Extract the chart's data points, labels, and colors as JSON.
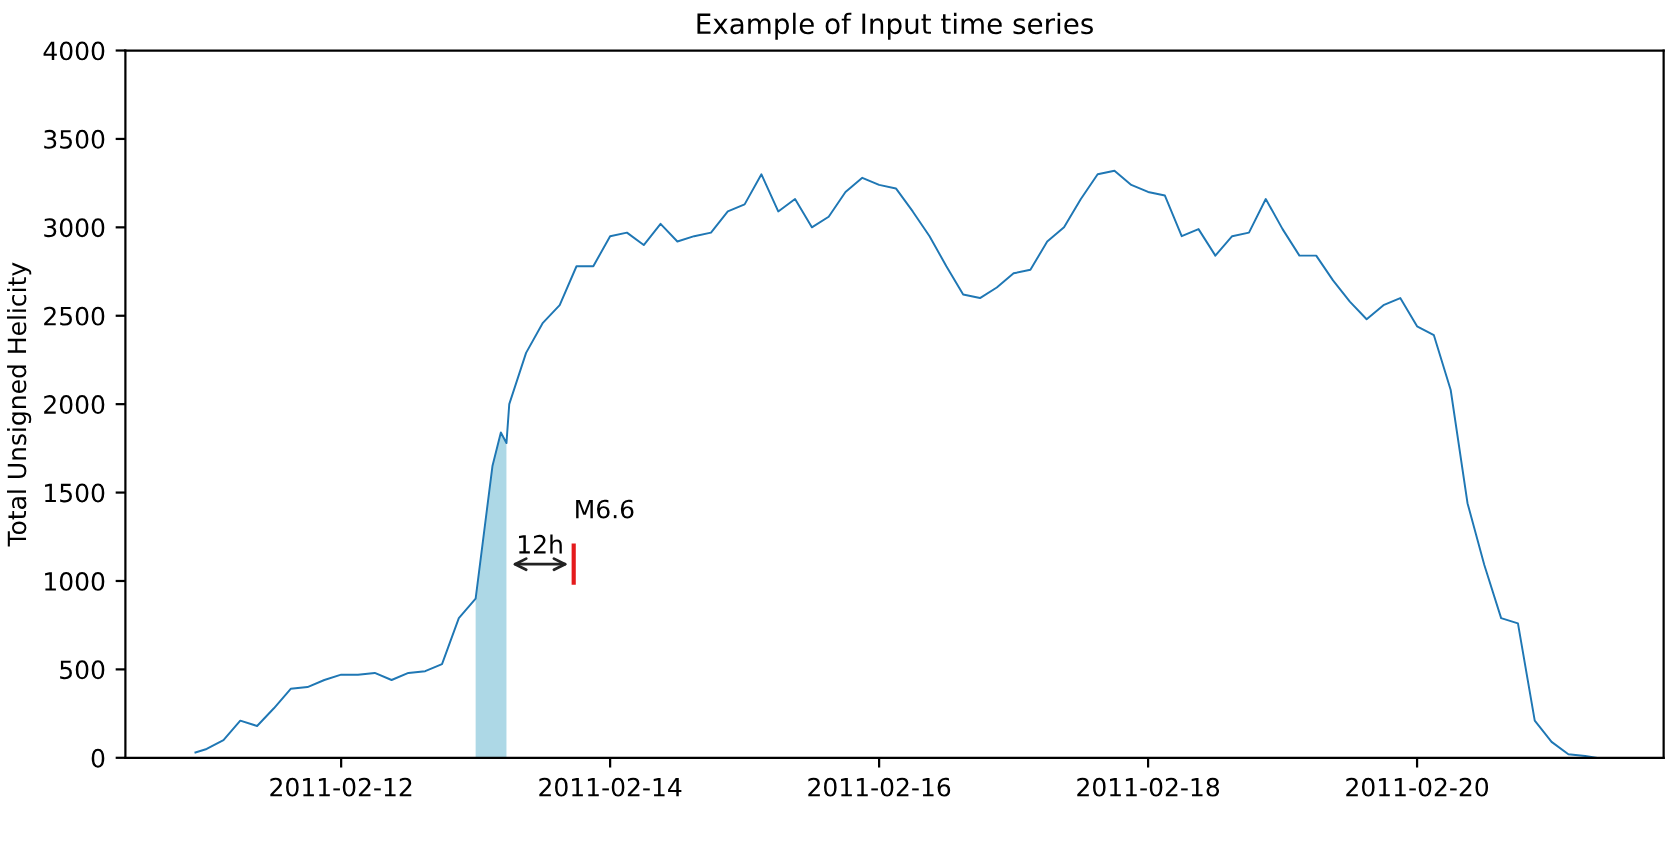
{
  "chart_data": {
    "type": "line",
    "title": "Example of Input time series",
    "ylabel": "Total Unsigned Helicity",
    "xlim": [
      "2011-02-10T09:30",
      "2011-02-21T20:00"
    ],
    "xticks": [
      "2011-02-12",
      "2011-02-14",
      "2011-02-16",
      "2011-02-18",
      "2011-02-20"
    ],
    "ylim": [
      0,
      4000
    ],
    "yticks": [
      0,
      500,
      1000,
      1500,
      2000,
      2500,
      3000,
      3500,
      4000
    ],
    "grid": false,
    "series": [
      {
        "color": "#1f77b4",
        "x": [
          "2011-02-10T22:00",
          "2011-02-11T00:00",
          "2011-02-11T03:00",
          "2011-02-11T06:00",
          "2011-02-11T09:00",
          "2011-02-11T12:00",
          "2011-02-11T15:00",
          "2011-02-11T18:00",
          "2011-02-11T21:00",
          "2011-02-12T00:00",
          "2011-02-12T03:00",
          "2011-02-12T06:00",
          "2011-02-12T09:00",
          "2011-02-12T12:00",
          "2011-02-12T15:00",
          "2011-02-12T18:00",
          "2011-02-12T21:00",
          "2011-02-13T00:00",
          "2011-02-13T03:00",
          "2011-02-13T04:30",
          "2011-02-13T05:30",
          "2011-02-13T06:00",
          "2011-02-13T09:00",
          "2011-02-13T12:00",
          "2011-02-13T15:00",
          "2011-02-13T18:00",
          "2011-02-13T21:00",
          "2011-02-14T00:00",
          "2011-02-14T03:00",
          "2011-02-14T06:00",
          "2011-02-14T09:00",
          "2011-02-14T12:00",
          "2011-02-14T15:00",
          "2011-02-14T18:00",
          "2011-02-14T21:00",
          "2011-02-15T00:00",
          "2011-02-15T03:00",
          "2011-02-15T06:00",
          "2011-02-15T09:00",
          "2011-02-15T12:00",
          "2011-02-15T15:00",
          "2011-02-15T18:00",
          "2011-02-15T21:00",
          "2011-02-16T00:00",
          "2011-02-16T03:00",
          "2011-02-16T06:00",
          "2011-02-16T09:00",
          "2011-02-16T12:00",
          "2011-02-16T15:00",
          "2011-02-16T18:00",
          "2011-02-16T21:00",
          "2011-02-17T00:00",
          "2011-02-17T03:00",
          "2011-02-17T06:00",
          "2011-02-17T09:00",
          "2011-02-17T12:00",
          "2011-02-17T15:00",
          "2011-02-17T18:00",
          "2011-02-17T21:00",
          "2011-02-18T00:00",
          "2011-02-18T03:00",
          "2011-02-18T06:00",
          "2011-02-18T09:00",
          "2011-02-18T12:00",
          "2011-02-18T15:00",
          "2011-02-18T18:00",
          "2011-02-18T21:00",
          "2011-02-19T00:00",
          "2011-02-19T03:00",
          "2011-02-19T06:00",
          "2011-02-19T09:00",
          "2011-02-19T12:00",
          "2011-02-19T15:00",
          "2011-02-19T18:00",
          "2011-02-19T21:00",
          "2011-02-20T00:00",
          "2011-02-20T03:00",
          "2011-02-20T06:00",
          "2011-02-20T09:00",
          "2011-02-20T12:00",
          "2011-02-20T15:00",
          "2011-02-20T18:00",
          "2011-02-20T21:00",
          "2011-02-21T00:00",
          "2011-02-21T03:00",
          "2011-02-21T06:00",
          "2011-02-21T08:00"
        ],
        "values": [
          30,
          50,
          100,
          210,
          180,
          280,
          390,
          400,
          440,
          470,
          470,
          480,
          440,
          480,
          490,
          530,
          790,
          900,
          1650,
          1840,
          1780,
          2000,
          2290,
          2460,
          2560,
          2780,
          2780,
          2950,
          2970,
          2900,
          3020,
          2920,
          2950,
          2970,
          3090,
          3130,
          3300,
          3090,
          3160,
          3000,
          3060,
          3200,
          3280,
          3240,
          3220,
          3090,
          2950,
          2780,
          2620,
          2600,
          2660,
          2740,
          2760,
          2920,
          3000,
          3160,
          3300,
          3320,
          3240,
          3200,
          3180,
          2950,
          2990,
          2840,
          2950,
          2970,
          3160,
          2990,
          2840,
          2840,
          2700,
          2580,
          2480,
          2560,
          2600,
          2440,
          2390,
          2080,
          1440,
          1090,
          790,
          760,
          210,
          90,
          20,
          10,
          0
        ]
      },
      {
        "type": "area",
        "color": "#add8e6",
        "x": [
          "2011-02-13T00:00",
          "2011-02-13T03:00",
          "2011-02-13T04:30",
          "2011-02-13T05:30"
        ],
        "values": [
          900,
          1650,
          1840,
          1780
        ]
      },
      {
        "type": "line",
        "color": "#e41a1c",
        "x": [
          "2011-02-13T17:30",
          "2011-02-13T17:30"
        ],
        "values": [
          990,
          1200
        ]
      }
    ],
    "annotations": [
      "12h",
      {
        "text": "M6.6",
        "x": "2011-02-13T17:30",
        "y": 1200
      }
    ]
  }
}
